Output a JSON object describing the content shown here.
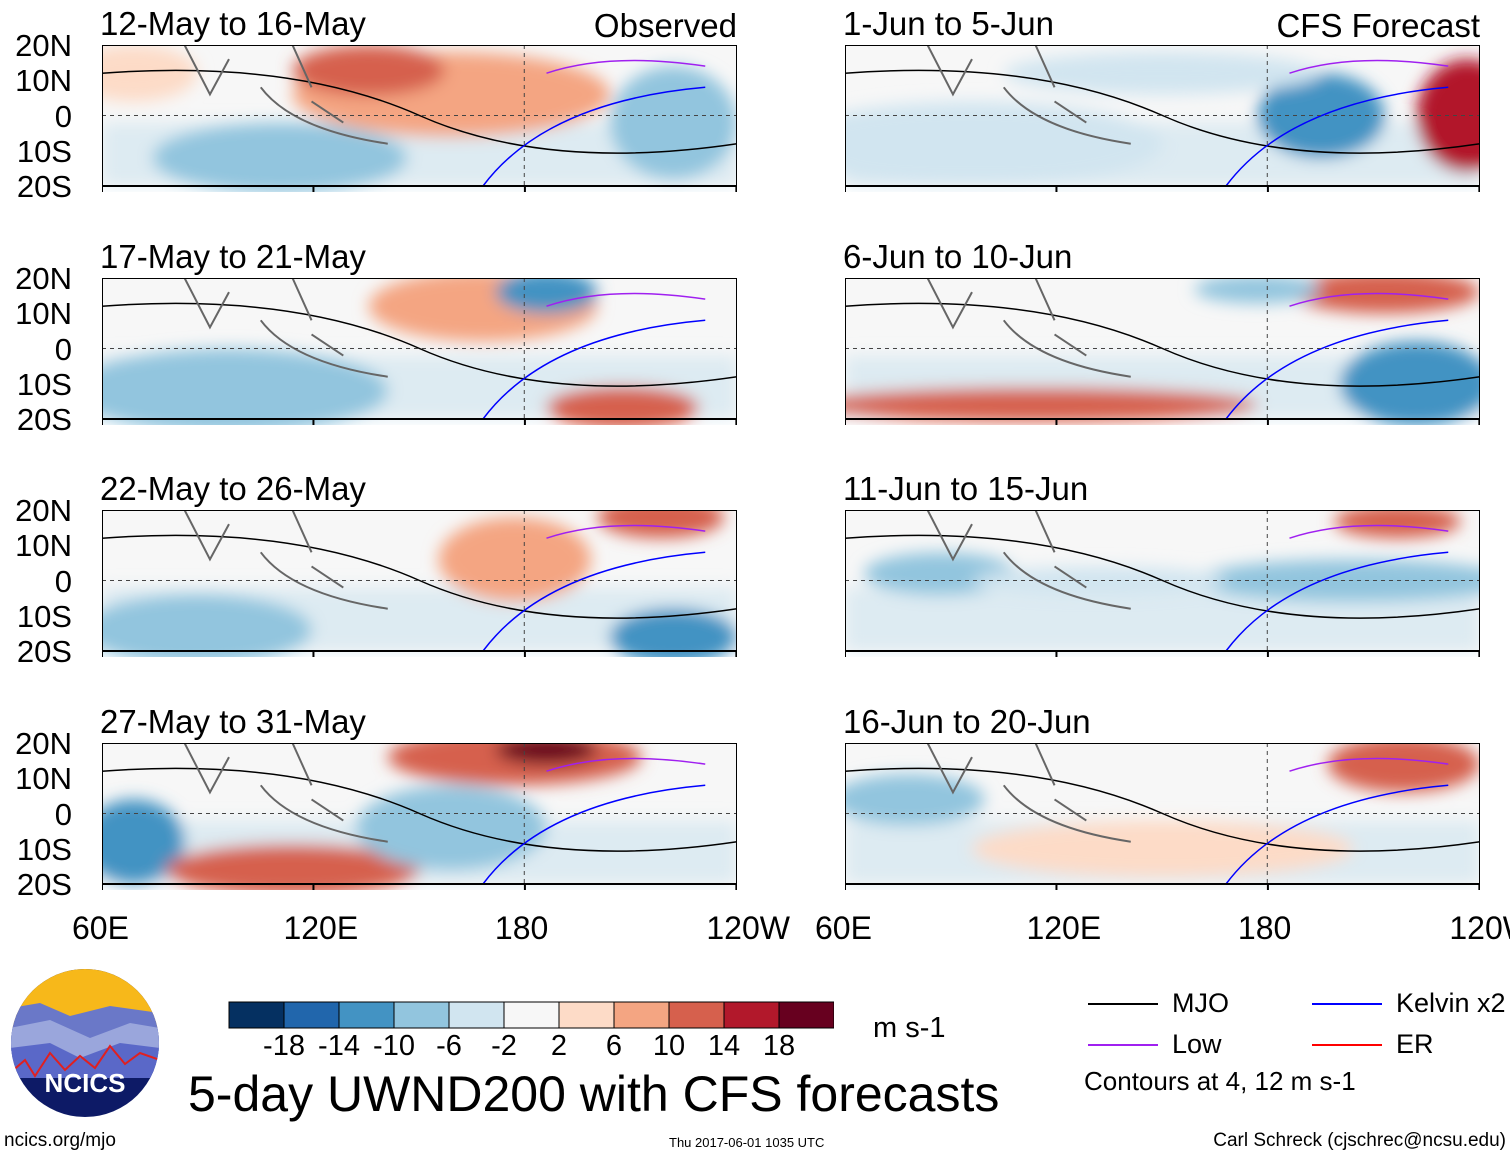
{
  "chart_data": {
    "type": "heatmap",
    "title": "5-day UWND200 with CFS forecasts",
    "units": "m s-1",
    "x_ticks": [
      "60E",
      "120E",
      "180",
      "120W"
    ],
    "y_ticks": [
      "20N",
      "10N",
      "0",
      "10S",
      "20S"
    ],
    "column_labels": [
      "Observed",
      "CFS Forecast"
    ],
    "panels": [
      {
        "period": "12-May to 16-May",
        "column": "Observed"
      },
      {
        "period": "17-May to 21-May",
        "column": "Observed"
      },
      {
        "period": "22-May to 26-May",
        "column": "Observed"
      },
      {
        "period": "27-May to 31-May",
        "column": "Observed"
      },
      {
        "period": "1-Jun to 5-Jun",
        "column": "CFS Forecast"
      },
      {
        "period": "6-Jun to 10-Jun",
        "column": "CFS Forecast"
      },
      {
        "period": "11-Jun to 15-Jun",
        "column": "CFS Forecast"
      },
      {
        "period": "16-Jun to 20-Jun",
        "column": "CFS Forecast"
      }
    ],
    "colorbar": {
      "labels": [
        "-18",
        "-14",
        "-10",
        "-6",
        "-2",
        "2",
        "6",
        "10",
        "14",
        "18"
      ],
      "colors": [
        "#053061",
        "#2166ac",
        "#4393c3",
        "#92c5de",
        "#d1e5f0",
        "#f7f7f7",
        "#fddbc7",
        "#f4a582",
        "#d6604d",
        "#b2182b",
        "#67001f"
      ]
    },
    "legend": [
      {
        "label": "MJO",
        "color": "#000000"
      },
      {
        "label": "Kelvin x2",
        "color": "#0000ff"
      },
      {
        "label": "Low",
        "color": "#a020f0"
      },
      {
        "label": "ER",
        "color": "#ff0000"
      }
    ],
    "contour_note": "Contours at 4, 12 m s-1"
  },
  "footer": {
    "logo_text": "NCICS",
    "url": "ncics.org/mjo",
    "timestamp": "Thu 2017-06-01 1035 UTC",
    "author": "Carl Schreck (cjschrec@ncsu.edu)"
  }
}
